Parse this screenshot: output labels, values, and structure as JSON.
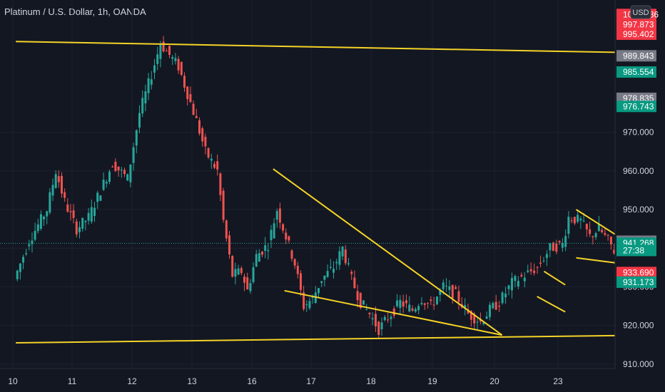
{
  "header": {
    "title": "Platinum / U.S. Dollar, 1h, OANDA",
    "currency": "USD"
  },
  "colors": {
    "background": "#131722",
    "up": "#26a69a",
    "down": "#ef5350",
    "trendline": "#f5d327",
    "text": "#d1d4dc",
    "target_zone": "#1e4e4b",
    "stop_zone": "#4a2228"
  },
  "chart_data": {
    "type": "candlestick",
    "x_tick_labels": [
      "10",
      "11",
      "12",
      "13",
      "16",
      "17",
      "18",
      "19",
      "20",
      "23"
    ],
    "y_tick_labels": [
      "910.000",
      "920.000",
      "930.000",
      "940.000",
      "950.000",
      "960.000",
      "970.000"
    ],
    "ylim": [
      907,
      1003
    ],
    "price_tags": [
      {
        "label": "1000.486",
        "price": 1000.5,
        "kind": "red"
      },
      {
        "label": "997.873",
        "price": 997.9,
        "kind": "red"
      },
      {
        "label": "995.402",
        "price": 995.4,
        "kind": "red"
      },
      {
        "label": "989.843",
        "price": 989.8,
        "kind": "gray"
      },
      {
        "label": "985.554",
        "price": 985.6,
        "kind": "green"
      },
      {
        "label": "978.835",
        "price": 978.8,
        "kind": "gray"
      },
      {
        "label": "976.743",
        "price": 976.7,
        "kind": "green"
      },
      {
        "label": "941.780",
        "price": 941.8,
        "kind": "gray"
      },
      {
        "label": "941.268",
        "price": 941.3,
        "kind": "green"
      },
      {
        "label": "27:38",
        "price": 939.4,
        "kind": "green-sub"
      },
      {
        "label": "933.690",
        "price": 933.7,
        "kind": "red"
      },
      {
        "label": "931.173",
        "price": 931.2,
        "kind": "green"
      }
    ],
    "current_price": 941.268,
    "position": {
      "entry": 941.78,
      "target": 986.0,
      "stop": 934.0,
      "x_start": 18.3,
      "x_end": 19.25
    },
    "trendlines": [
      {
        "x1": 8.05,
        "y1": 993.5,
        "x2": 23.95,
        "y2": 989.0
      },
      {
        "x1": 8.05,
        "y1": 915.5,
        "x2": 23.95,
        "y2": 918.5
      },
      {
        "x1": 12.36,
        "y1": 960.5,
        "x2": 16.12,
        "y2": 917.5
      },
      {
        "x1": 12.55,
        "y1": 929.0,
        "x2": 16.12,
        "y2": 917.5
      },
      {
        "x1": 16.67,
        "y1": 927.5,
        "x2": 17.12,
        "y2": 923.5
      },
      {
        "x1": 16.78,
        "y1": 934.0,
        "x2": 17.12,
        "y2": 930.5
      },
      {
        "x1": 17.3,
        "y1": 950.0,
        "x2": 18.15,
        "y2": 941.5
      },
      {
        "x1": 17.3,
        "y1": 937.5,
        "x2": 18.05,
        "y2": 936.0
      }
    ],
    "ohlc_anchors": [
      [
        8.05,
        932
      ],
      [
        8.3,
        942
      ],
      [
        8.6,
        950
      ],
      [
        8.75,
        960
      ],
      [
        8.9,
        952
      ],
      [
        9.1,
        945
      ],
      [
        9.3,
        948
      ],
      [
        9.5,
        955
      ],
      [
        9.7,
        962
      ],
      [
        9.95,
        958
      ],
      [
        10.15,
        975
      ],
      [
        10.35,
        985
      ],
      [
        10.5,
        993
      ],
      [
        10.65,
        990
      ],
      [
        10.8,
        987
      ],
      [
        10.95,
        980
      ],
      [
        11.1,
        973
      ],
      [
        11.25,
        965
      ],
      [
        11.45,
        960
      ],
      [
        11.55,
        947
      ],
      [
        11.7,
        933
      ],
      [
        11.85,
        934
      ],
      [
        11.95,
        929
      ],
      [
        12.1,
        938
      ],
      [
        12.3,
        941
      ],
      [
        12.45,
        950
      ],
      [
        12.6,
        943
      ],
      [
        12.75,
        936
      ],
      [
        12.9,
        925
      ],
      [
        13.05,
        927
      ],
      [
        13.2,
        932
      ],
      [
        13.4,
        935
      ],
      [
        13.55,
        940
      ],
      [
        13.7,
        932
      ],
      [
        13.85,
        926
      ],
      [
        14.0,
        923
      ],
      [
        14.15,
        919
      ],
      [
        14.3,
        922
      ],
      [
        14.5,
        926
      ],
      [
        14.7,
        924
      ],
      [
        14.85,
        927
      ],
      [
        15.0,
        925
      ],
      [
        15.2,
        930
      ],
      [
        15.4,
        928
      ],
      [
        15.6,
        923
      ],
      [
        15.8,
        921
      ],
      [
        15.95,
        924
      ],
      [
        16.1,
        926
      ],
      [
        16.3,
        931
      ],
      [
        16.5,
        933
      ],
      [
        16.7,
        935
      ],
      [
        16.9,
        940
      ],
      [
        17.1,
        941
      ],
      [
        17.2,
        948
      ],
      [
        17.4,
        947
      ],
      [
        17.55,
        943
      ],
      [
        17.7,
        945
      ],
      [
        17.85,
        942
      ],
      [
        18.0,
        938
      ],
      [
        18.1,
        941.27
      ]
    ]
  }
}
